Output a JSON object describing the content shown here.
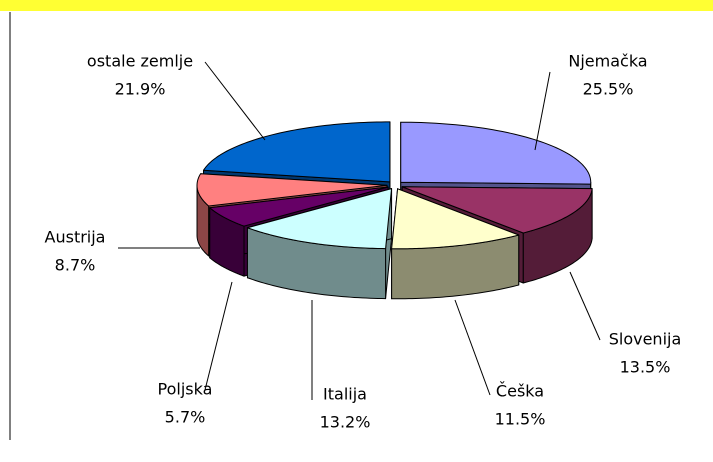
{
  "chart_data": {
    "type": "pie3d",
    "categories": [
      "Njemačka",
      "Slovenija",
      "Češka",
      "Italija",
      "Poljska",
      "Austrija",
      "ostale zemlje"
    ],
    "values": [
      25.5,
      13.5,
      11.5,
      13.2,
      5.7,
      8.7,
      21.9
    ],
    "value_labels": [
      "25.5%",
      "13.5%",
      "11.5%",
      "13.2%",
      "5.7%",
      "8.7%",
      "21.9%"
    ],
    "colors": [
      "#9999ff",
      "#993366",
      "#ffffcc",
      "#ccffff",
      "#660066",
      "#ff8080",
      "#0066cc"
    ]
  }
}
